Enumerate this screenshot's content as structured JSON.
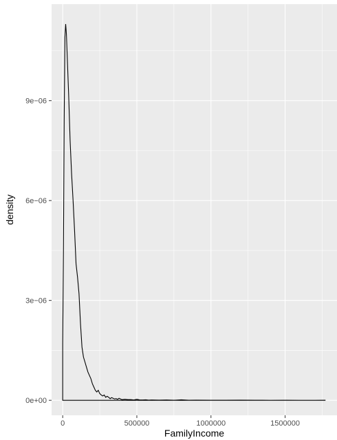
{
  "chart_data": {
    "type": "area",
    "title": "",
    "xlabel": "FamilyIncome",
    "ylabel": "density",
    "xlim": [
      -75000,
      1850000
    ],
    "ylim": [
      -4.5e-07,
      1.19e-05
    ],
    "x_ticks": [
      {
        "value": 0,
        "label": "0"
      },
      {
        "value": 500000,
        "label": "500000"
      },
      {
        "value": 1000000,
        "label": "1000000"
      },
      {
        "value": 1500000,
        "label": "1500000"
      }
    ],
    "y_ticks": [
      {
        "value": 0,
        "label": "0e+00"
      },
      {
        "value": 3e-06,
        "label": "3e−06"
      },
      {
        "value": 6e-06,
        "label": "6e−06"
      },
      {
        "value": 9e-06,
        "label": "9e−06"
      }
    ],
    "grid": true,
    "panel_background": "#ebebeb",
    "grid_color": "#ffffff",
    "line_color": "#000000",
    "series": [
      {
        "x": [
          0,
          0,
          5000,
          10000,
          15000,
          20000,
          25000,
          30000,
          40000,
          50000,
          60000,
          70000,
          80000,
          90000,
          100000,
          110000,
          120000,
          130000,
          140000,
          150000,
          160000,
          170000,
          180000,
          190000,
          200000,
          210000,
          220000,
          230000,
          240000,
          250000,
          260000,
          270000,
          280000,
          290000,
          300000,
          310000,
          320000,
          330000,
          340000,
          350000,
          360000,
          370000,
          380000,
          390000,
          400000,
          420000,
          440000,
          460000,
          480000,
          500000,
          520000,
          540000,
          560000,
          580000,
          600000,
          650000,
          700000,
          750000,
          800000,
          850000,
          900000,
          1000000,
          1100000,
          1200000,
          1300000,
          1400000,
          1500000,
          1600000,
          1700000,
          1770000,
          1770000
        ],
        "y": [
          0,
          1.7e-06,
          4.5e-06,
          8.4e-06,
          1.09e-05,
          1.13e-05,
          1.1e-05,
          1.04e-05,
          9.2e-06,
          7.8e-06,
          6.8e-06,
          6e-06,
          5.1e-06,
          4.1e-06,
          3.7e-06,
          3.2e-06,
          2.3e-06,
          1.6e-06,
          1.3e-06,
          1.15e-06,
          1e-06,
          8.5e-07,
          7.5e-07,
          6.5e-07,
          5e-07,
          4e-07,
          3e-07,
          2.5e-07,
          3e-07,
          2e-07,
          1.6e-07,
          1.3e-07,
          1.6e-07,
          9e-08,
          1.2e-07,
          9e-08,
          5e-08,
          8e-08,
          6e-08,
          4e-08,
          5e-08,
          3e-08,
          6e-08,
          4e-08,
          2e-08,
          3e-08,
          2e-08,
          2e-08,
          1e-08,
          3e-08,
          1e-08,
          1e-08,
          1.5e-08,
          5e-09,
          1e-08,
          5e-09,
          1e-08,
          2e-09,
          1.5e-08,
          3e-09,
          5e-09,
          3e-09,
          2e-09,
          5e-09,
          2e-09,
          1e-09,
          3e-09,
          1e-09,
          1e-09,
          2e-09,
          0
        ]
      }
    ]
  }
}
